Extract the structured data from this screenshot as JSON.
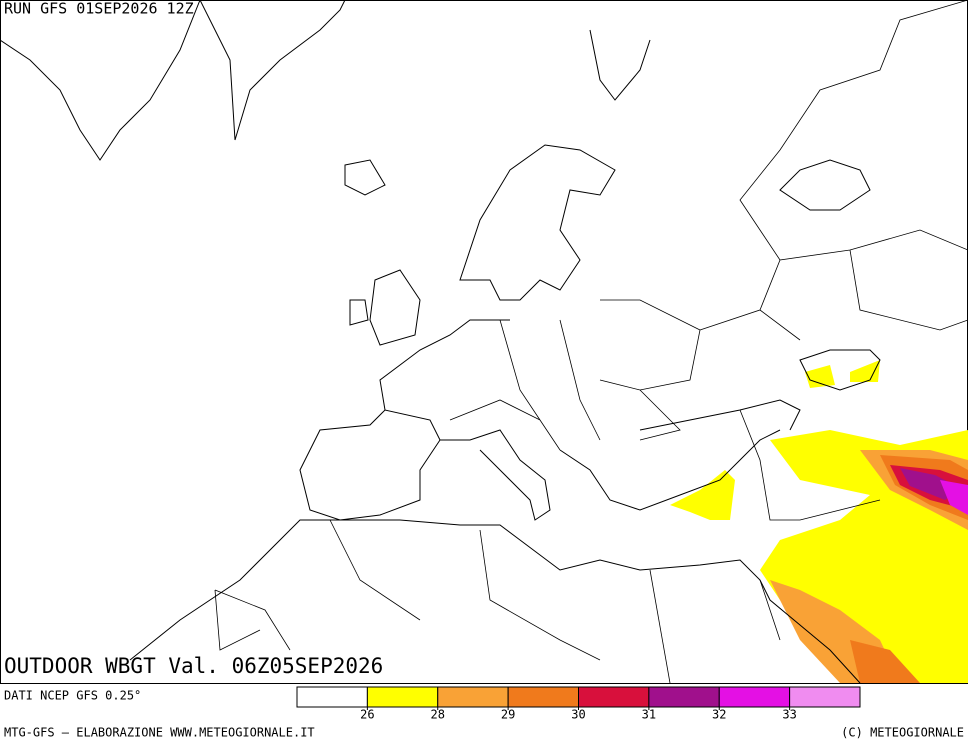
{
  "header": {
    "run": "RUN GFS 01SEP2026 12Z"
  },
  "map": {
    "title": "OUTDOOR WBGT Val. 06Z05SEP2026"
  },
  "footer": {
    "source": "DATI NCEP GFS 0.25°",
    "credit": "MTG-GFS — ELABORAZIONE WWW.METEOGIORNALE.IT",
    "copyright": "(C) METEOGIORNALE"
  },
  "legend": {
    "colors": [
      "#ffffff",
      "#ffff00",
      "#f9a236",
      "#f07a1c",
      "#d8103c",
      "#a0108c",
      "#e410e4",
      "#f08cf0"
    ],
    "ticks": [
      26,
      28,
      29,
      30,
      31,
      32,
      33
    ]
  }
}
